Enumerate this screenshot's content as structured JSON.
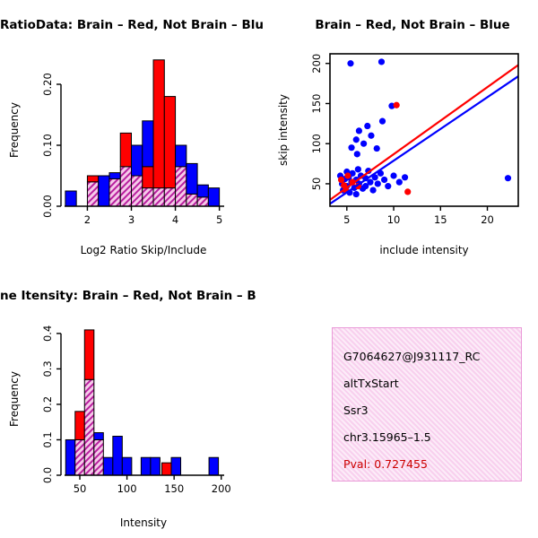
{
  "colors": {
    "red": "#ff0000",
    "blue": "#0000ff",
    "hatch_line": "#b81f9e",
    "hatch_bg": "#f6c9ea",
    "info_box_border": "#ea9ad8",
    "info_box_pink": "#f8d0ee",
    "pval_red": "#cc0000",
    "black": "#000000"
  },
  "chart_data": [
    {
      "type": "bar",
      "subtype": "overlaid-histogram",
      "title": "RatioData: Brain – Red, Not Brain – Blu",
      "xlabel": "Log2 Ratio Skip/Include",
      "ylabel": "Frequency",
      "xlim": [
        1.4,
        5.15
      ],
      "ylim": [
        0,
        0.25
      ],
      "xticks": [
        2,
        3,
        4,
        5
      ],
      "yticks": [
        0,
        0.1,
        0.2
      ],
      "ytick_labels": [
        "0.00",
        "0.10",
        "0.20"
      ],
      "legend_note": "red = Brain, blue = Not Brain, purple hatch = overlap",
      "bin_width": 0.25,
      "bars": [
        {
          "x": 1.5,
          "segments": [
            {
              "color": "blue",
              "top": 0.025
            }
          ]
        },
        {
          "x": 2.0,
          "segments": [
            {
              "color": "purple",
              "top": 0.04
            },
            {
              "color": "red",
              "top": 0.05
            }
          ]
        },
        {
          "x": 2.25,
          "segments": [
            {
              "color": "blue",
              "top": 0.05
            }
          ]
        },
        {
          "x": 2.5,
          "segments": [
            {
              "color": "purple",
              "top": 0.045
            },
            {
              "color": "blue",
              "top": 0.055
            }
          ]
        },
        {
          "x": 2.75,
          "segments": [
            {
              "color": "purple",
              "top": 0.065
            },
            {
              "color": "red",
              "top": 0.12
            }
          ]
        },
        {
          "x": 3.0,
          "segments": [
            {
              "color": "purple",
              "top": 0.05
            },
            {
              "color": "blue",
              "top": 0.1
            }
          ]
        },
        {
          "x": 3.25,
          "segments": [
            {
              "color": "purple",
              "top": 0.03
            },
            {
              "color": "red",
              "top": 0.065
            },
            {
              "color": "blue",
              "top": 0.14
            }
          ]
        },
        {
          "x": 3.5,
          "segments": [
            {
              "color": "purple",
              "top": 0.03
            },
            {
              "color": "red",
              "top": 0.24
            }
          ]
        },
        {
          "x": 3.75,
          "segments": [
            {
              "color": "purple",
              "top": 0.03
            },
            {
              "color": "red",
              "top": 0.18
            }
          ]
        },
        {
          "x": 4.0,
          "segments": [
            {
              "color": "purple",
              "top": 0.065
            },
            {
              "color": "blue",
              "top": 0.1
            }
          ]
        },
        {
          "x": 4.25,
          "segments": [
            {
              "color": "purple",
              "top": 0.02
            },
            {
              "color": "blue",
              "top": 0.07
            }
          ]
        },
        {
          "x": 4.5,
          "segments": [
            {
              "color": "purple",
              "top": 0.015
            },
            {
              "color": "blue",
              "top": 0.035
            }
          ]
        },
        {
          "x": 4.75,
          "segments": [
            {
              "color": "blue",
              "top": 0.03
            }
          ]
        }
      ]
    },
    {
      "type": "scatter",
      "title": "Brain – Red, Not Brain – Blue",
      "xlabel": "include intensity",
      "ylabel": "skip intensity",
      "xlim": [
        3.2,
        23.3
      ],
      "ylim": [
        22,
        212
      ],
      "xticks": [
        5,
        10,
        15,
        20
      ],
      "yticks": [
        50,
        100,
        150,
        200
      ],
      "series": [
        {
          "name": "Not Brain",
          "color": "blue",
          "points": [
            [
              4.3,
              60
            ],
            [
              4.5,
              50
            ],
            [
              4.6,
              42
            ],
            [
              4.8,
              56
            ],
            [
              5.0,
              65
            ],
            [
              5.0,
              47
            ],
            [
              5.2,
              58
            ],
            [
              5.3,
              39
            ],
            [
              5.5,
              52
            ],
            [
              5.6,
              63
            ],
            [
              5.8,
              45
            ],
            [
              6.0,
              55
            ],
            [
              6.0,
              37
            ],
            [
              6.2,
              68
            ],
            [
              6.3,
              50
            ],
            [
              6.5,
              60
            ],
            [
              6.7,
              44
            ],
            [
              7.0,
              57
            ],
            [
              7.0,
              47
            ],
            [
              7.3,
              66
            ],
            [
              7.5,
              52
            ],
            [
              7.8,
              42
            ],
            [
              8.0,
              58
            ],
            [
              8.3,
              50
            ],
            [
              8.6,
              63
            ],
            [
              9.0,
              55
            ],
            [
              9.4,
              47
            ],
            [
              10.0,
              60
            ],
            [
              10.6,
              52
            ],
            [
              11.2,
              58
            ],
            [
              22.2,
              57
            ],
            [
              5.5,
              95
            ],
            [
              6.0,
              105
            ],
            [
              6.3,
              116
            ],
            [
              6.8,
              100
            ],
            [
              7.2,
              122
            ],
            [
              7.6,
              110
            ],
            [
              8.2,
              94
            ],
            [
              8.8,
              128
            ],
            [
              9.8,
              147
            ],
            [
              5.4,
              200
            ],
            [
              8.7,
              202
            ],
            [
              6.1,
              87
            ]
          ]
        },
        {
          "name": "Brain",
          "color": "red",
          "points": [
            [
              4.4,
              55
            ],
            [
              4.7,
              48
            ],
            [
              5.1,
              60
            ],
            [
              5.6,
              52
            ],
            [
              4.9,
              42
            ],
            [
              6.2,
              47
            ],
            [
              10.3,
              148
            ],
            [
              11.5,
              40
            ]
          ]
        }
      ],
      "lines": [
        {
          "color": "red",
          "from": [
            3.2,
            30
          ],
          "to": [
            23.3,
            198
          ]
        },
        {
          "color": "blue",
          "from": [
            3.2,
            25
          ],
          "to": [
            23.3,
            184
          ]
        }
      ]
    },
    {
      "type": "bar",
      "subtype": "overlaid-histogram",
      "title": "ne Itensity: Brain – Red, Not Brain – B",
      "xlabel": "Intensity",
      "ylabel": "Frequency",
      "xlim": [
        30,
        205
      ],
      "ylim": [
        0,
        0.43
      ],
      "xticks": [
        50,
        100,
        150,
        200
      ],
      "yticks": [
        0,
        0.1,
        0.2,
        0.3,
        0.4
      ],
      "ytick_labels": [
        "0.0",
        "0.1",
        "0.2",
        "0.3",
        "0.4"
      ],
      "legend_note": "red = Brain, blue = Not Brain, purple hatch = overlap",
      "bin_width": 10,
      "bars": [
        {
          "x": 35,
          "segments": [
            {
              "color": "blue",
              "top": 0.1
            }
          ]
        },
        {
          "x": 45,
          "segments": [
            {
              "color": "purple",
              "top": 0.1
            },
            {
              "color": "red",
              "top": 0.18
            }
          ]
        },
        {
          "x": 55,
          "segments": [
            {
              "color": "purple",
              "top": 0.27
            },
            {
              "color": "red",
              "top": 0.41
            }
          ]
        },
        {
          "x": 65,
          "segments": [
            {
              "color": "purple",
              "top": 0.1
            },
            {
              "color": "blue",
              "top": 0.12
            }
          ]
        },
        {
          "x": 75,
          "segments": [
            {
              "color": "blue",
              "top": 0.05
            }
          ]
        },
        {
          "x": 85,
          "segments": [
            {
              "color": "blue",
              "top": 0.11
            }
          ]
        },
        {
          "x": 95,
          "segments": [
            {
              "color": "blue",
              "top": 0.05
            }
          ]
        },
        {
          "x": 115,
          "segments": [
            {
              "color": "blue",
              "top": 0.05
            }
          ]
        },
        {
          "x": 125,
          "segments": [
            {
              "color": "blue",
              "top": 0.05
            }
          ]
        },
        {
          "x": 137,
          "segments": [
            {
              "color": "red",
              "top": 0.035
            }
          ]
        },
        {
          "x": 147,
          "segments": [
            {
              "color": "blue",
              "top": 0.05
            }
          ]
        },
        {
          "x": 187,
          "segments": [
            {
              "color": "blue",
              "top": 0.05
            }
          ]
        }
      ]
    }
  ],
  "info_box": {
    "lines": [
      "G7064627@J931117_RC",
      "altTxStart",
      "Ssr3",
      "chr3.15965–1.5"
    ],
    "pval": "Pval: 0.727455"
  }
}
